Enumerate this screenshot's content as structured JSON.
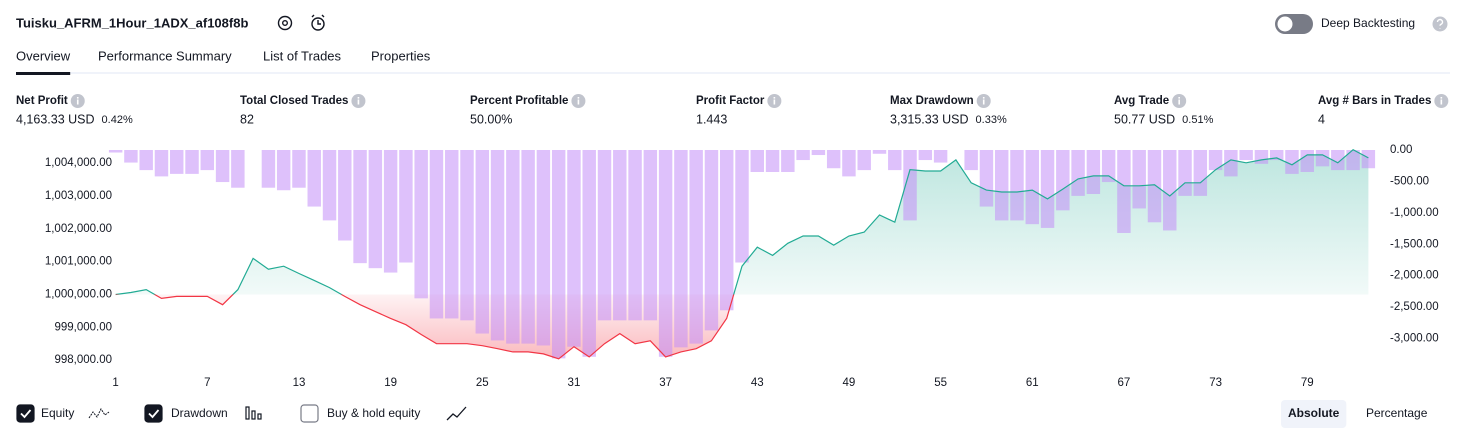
{
  "header": {
    "title": "Tuisku_AFRM_1Hour_1ADX_af108f8b",
    "deep_backtesting": {
      "label": "Deep Backtesting",
      "enabled": false
    }
  },
  "tabs": {
    "items": [
      "Overview",
      "Performance Summary",
      "List of Trades",
      "Properties"
    ],
    "active": 0
  },
  "stats": [
    {
      "label": "Net Profit",
      "value": "4,163.33 USD",
      "percent": "0.42%",
      "color": "#22ab94"
    },
    {
      "label": "Total Closed Trades",
      "value": "82",
      "color": "#131722"
    },
    {
      "label": "Percent Profitable",
      "value": "50.00%",
      "color": "#22ab94"
    },
    {
      "label": "Profit Factor",
      "value": "1.443",
      "color": "#22ab94"
    },
    {
      "label": "Max Drawdown",
      "value": "3,315.33 USD",
      "percent": "0.33%",
      "color": "#f23645"
    },
    {
      "label": "Avg Trade",
      "value": "50.77 USD",
      "percent": "0.51%",
      "color": "#22ab94"
    },
    {
      "label": "Avg # Bars in Trades",
      "value": "4",
      "color": "#131722"
    }
  ],
  "chart_data": {
    "type": "combo",
    "x": [
      1,
      2,
      3,
      4,
      5,
      6,
      7,
      8,
      9,
      10,
      11,
      12,
      13,
      14,
      15,
      16,
      17,
      18,
      19,
      20,
      21,
      22,
      23,
      24,
      25,
      26,
      27,
      28,
      29,
      30,
      31,
      32,
      33,
      34,
      35,
      36,
      37,
      38,
      39,
      40,
      41,
      42,
      43,
      44,
      45,
      46,
      47,
      48,
      49,
      50,
      51,
      52,
      53,
      54,
      55,
      56,
      57,
      58,
      59,
      60,
      61,
      62,
      63,
      64,
      65,
      66,
      67,
      68,
      69,
      70,
      71,
      72,
      73,
      74,
      75,
      76,
      77,
      78,
      79,
      80,
      81,
      82,
      83
    ],
    "series": [
      {
        "name": "Equity",
        "type": "line",
        "color": "#22ab94",
        "negative_color": "#f23645",
        "visible": true,
        "values": [
          1000000,
          1000060,
          1000150,
          999880,
          999940,
          999940,
          999940,
          999690,
          1000150,
          1001100,
          1000770,
          1000860,
          1000640,
          1000430,
          1000210,
          999940,
          999690,
          999480,
          999270,
          999080,
          998780,
          998500,
          998500,
          998500,
          998440,
          998350,
          998250,
          998250,
          998190,
          998040,
          998410,
          998100,
          998500,
          998810,
          998500,
          998590,
          998100,
          998250,
          998350,
          998590,
          999270,
          1000860,
          1001440,
          1001190,
          1001560,
          1001780,
          1001780,
          1001500,
          1001780,
          1001900,
          1002420,
          1002200,
          1003800,
          1003760,
          1003760,
          1004100,
          1003400,
          1003180,
          1003120,
          1003120,
          1003180,
          1002910,
          1003210,
          1003520,
          1003610,
          1003610,
          1003310,
          1003310,
          1003340,
          1003000,
          1003400,
          1003400,
          1003800,
          1004100,
          1004010,
          1004100,
          1004160,
          1003950,
          1004250,
          1004250,
          1004010,
          1004410,
          1004160
        ]
      },
      {
        "name": "Drawdown",
        "type": "bar",
        "axis": "y2",
        "color": "#c28ef7",
        "visible": true,
        "values": [
          -40,
          -200,
          -320,
          -420,
          -380,
          -380,
          -320,
          -510,
          -600,
          0,
          -600,
          -640,
          -600,
          -900,
          -1120,
          -1440,
          -1800,
          -1880,
          -1950,
          -1790,
          -2360,
          -2680,
          -2680,
          -2710,
          -2920,
          -3030,
          -3080,
          -3080,
          -3110,
          -3315,
          -3130,
          -3290,
          -2710,
          -2710,
          -2710,
          -2710,
          -3290,
          -3140,
          -3080,
          -2870,
          -2550,
          -1790,
          -350,
          -350,
          -350,
          -160,
          -80,
          -290,
          -420,
          -320,
          -60,
          -320,
          -1120,
          -160,
          -200,
          0,
          -320,
          -900,
          -1120,
          -1120,
          -1180,
          -1240,
          -960,
          -730,
          -700,
          -510,
          -1320,
          -930,
          -1150,
          -1280,
          -730,
          -730,
          -320,
          -420,
          -160,
          -220,
          -160,
          -380,
          -350,
          -260,
          -320,
          -320,
          -290
        ]
      }
    ],
    "buy_hold": {
      "name": "Buy & hold equity",
      "visible": false
    },
    "xlim": [
      0.5,
      83.5
    ],
    "xticks": [
      1,
      7,
      13,
      19,
      25,
      31,
      37,
      43,
      49,
      55,
      61,
      67,
      73,
      79
    ],
    "ylim": [
      997700,
      1004400
    ],
    "yticks": [
      {
        "value": 998000,
        "label": "998,000.00"
      },
      {
        "value": 999000,
        "label": "999,000.00"
      },
      {
        "value": 1000000,
        "label": "1,000,000.00"
      },
      {
        "value": 1001000,
        "label": "1,001,000.00"
      },
      {
        "value": 1002000,
        "label": "1,002,000.00"
      },
      {
        "value": 1003000,
        "label": "1,003,000.00"
      },
      {
        "value": 1004000,
        "label": "1,004,000.00"
      }
    ],
    "y2lim": [
      -3500,
      0
    ],
    "y2ticks": [
      {
        "value": 0,
        "label": "0.00"
      },
      {
        "value": -500,
        "label": "-500.00"
      },
      {
        "value": -1000,
        "label": "-1,000.00"
      },
      {
        "value": -1500,
        "label": "-1,500.00"
      },
      {
        "value": -2000,
        "label": "-2,000.00"
      },
      {
        "value": -2500,
        "label": "-2,500.00"
      },
      {
        "value": -3000,
        "label": "-3,000.00"
      }
    ],
    "grid": false
  },
  "view_modes": {
    "items": [
      "Absolute",
      "Percentage"
    ],
    "active": 0
  }
}
